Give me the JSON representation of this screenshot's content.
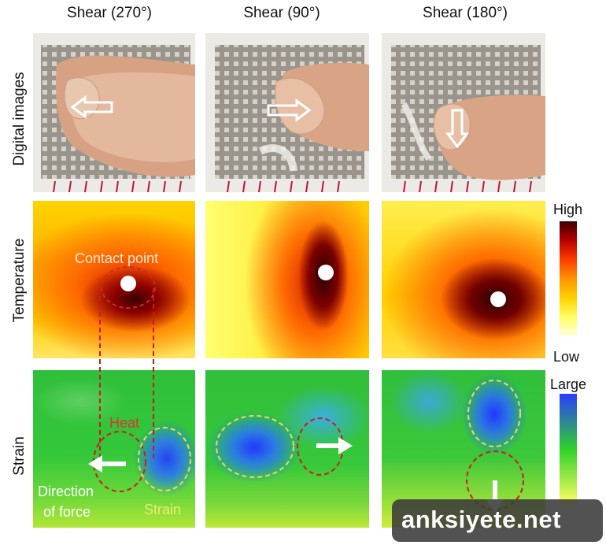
{
  "columns": [
    {
      "title": "Shear (270°)"
    },
    {
      "title": "Shear (90°)"
    },
    {
      "title": "Shear (180°)"
    }
  ],
  "rows": {
    "digital": "Digital images",
    "temperature": "Temperature",
    "strain": "Strain"
  },
  "temperature_legend": {
    "high": "High",
    "low": "Low",
    "colors": [
      "#fffde0",
      "#ffff66",
      "#ffd000",
      "#ff9400",
      "#ff3c00",
      "#b80000",
      "#3a0000"
    ]
  },
  "strain_legend": {
    "large": "Large",
    "colors": [
      "#2a3cff",
      "#2fd12a",
      "#ffff66"
    ]
  },
  "annotations": {
    "contact_point": "Contact point",
    "heat": "Heat",
    "direction_line1": "Direction",
    "direction_line2": "of force",
    "strain": "Strain"
  },
  "watermark": "anksiyete.net"
}
